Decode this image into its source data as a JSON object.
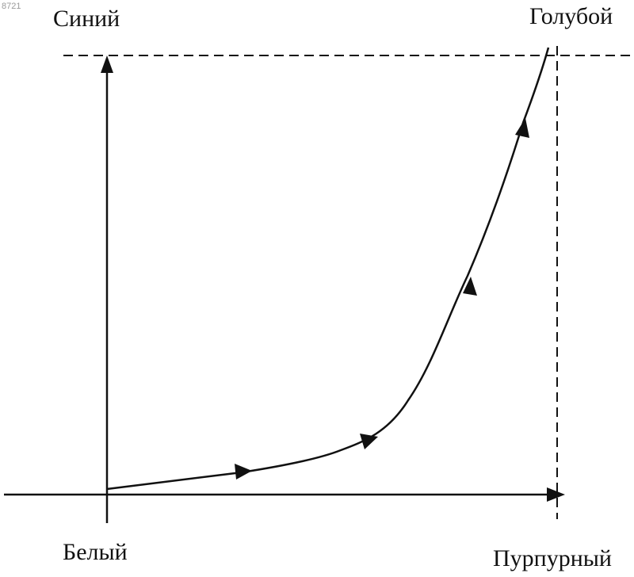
{
  "watermark": "8721",
  "labels": {
    "top_left": "Синий",
    "top_right": "Голубой",
    "bottom_left": "Белый",
    "bottom_right": "Пурпурный"
  },
  "colors": {
    "ink": "#111111",
    "background": "#ffffff",
    "watermark": "#9a9a9a"
  }
}
